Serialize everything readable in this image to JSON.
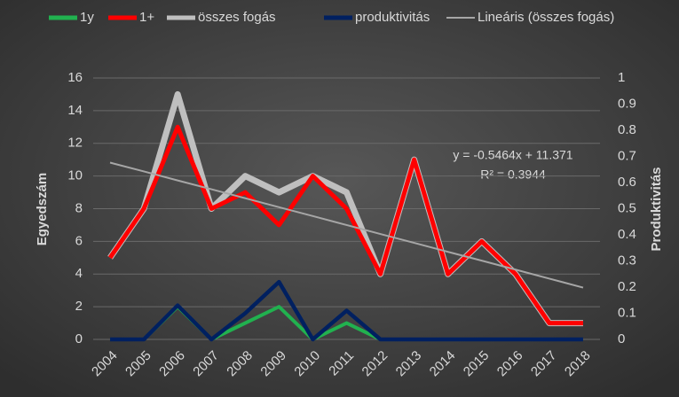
{
  "chart_data": {
    "type": "line",
    "categories": [
      "2004",
      "2005",
      "2006",
      "2007",
      "2008",
      "2009",
      "2010",
      "2011",
      "2012",
      "2013",
      "2014",
      "2015",
      "2016",
      "2017",
      "2018"
    ],
    "series": [
      {
        "name": "1y",
        "color": "#21b14f",
        "values": [
          0,
          0,
          2,
          0,
          1,
          2,
          0,
          1,
          0,
          0,
          0,
          0,
          0,
          0,
          0
        ]
      },
      {
        "name": "1+",
        "color": "#ff0000",
        "values": [
          5,
          8,
          13,
          8,
          9,
          7,
          10,
          8,
          4,
          11,
          4,
          6,
          4,
          1,
          1
        ]
      },
      {
        "name": "összes fogás",
        "color": "#bfbfbf",
        "values": [
          5,
          8,
          15,
          8,
          10,
          9,
          10,
          9,
          4,
          11,
          4,
          6,
          4,
          1,
          1
        ]
      },
      {
        "name": "produktivitás",
        "color": "#002060",
        "axis": "y2",
        "values": [
          0,
          0,
          0.13,
          0,
          0.1,
          0.22,
          0,
          0.11,
          0,
          0,
          0,
          0,
          0,
          0,
          0
        ]
      },
      {
        "name": "Lineáris (összes fogás)",
        "color": "#a6a6a6",
        "values": [
          10.82,
          10.28,
          9.73,
          9.19,
          8.64,
          8.09,
          7.55,
          7.0,
          6.45,
          5.91,
          5.36,
          4.82,
          4.27,
          3.72,
          3.17
        ]
      }
    ],
    "y_label": "Egyedszám",
    "y2_label": "Produktivitás",
    "ylim": [
      0,
      16
    ],
    "yticks": [
      0,
      2,
      4,
      6,
      8,
      10,
      12,
      14,
      16
    ],
    "y2lim": [
      0,
      1
    ],
    "y2ticks": [
      0,
      0.1,
      0.2,
      0.3,
      0.4,
      0.5,
      0.6,
      0.7,
      0.8,
      0.9,
      1
    ],
    "grid": true,
    "legend": "top",
    "annotations": [
      "y = -0.5464x + 11.371",
      "R² = 0.3944"
    ]
  }
}
